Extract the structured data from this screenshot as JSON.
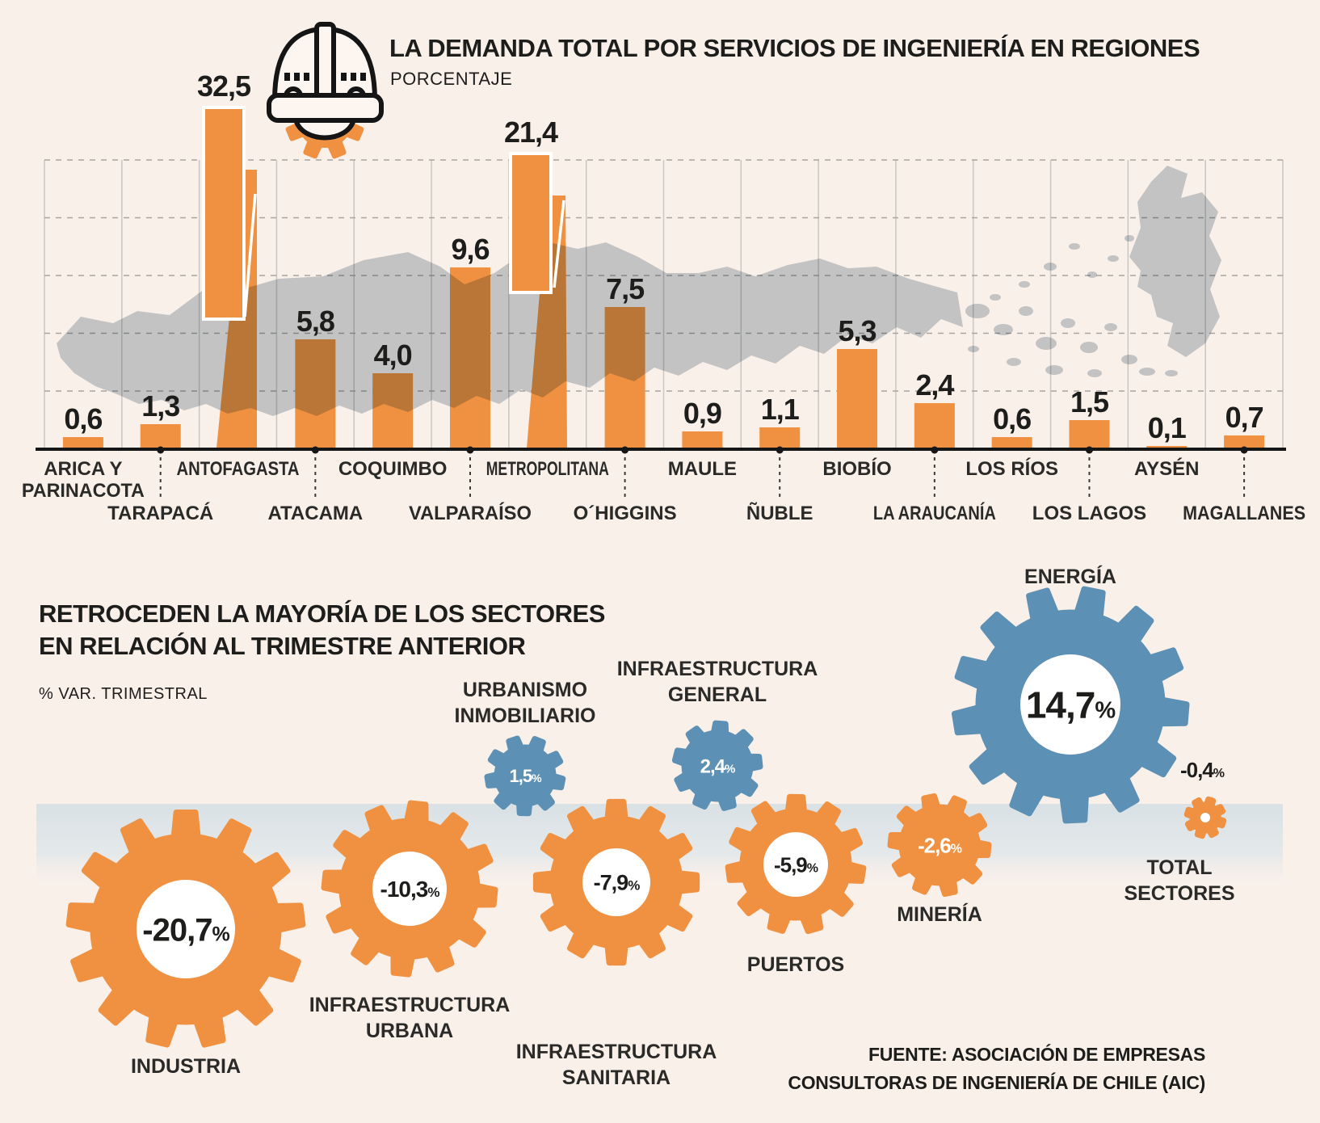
{
  "header": {
    "title": "LA DEMANDA TOTAL POR SERVICIOS DE INGENIERÍA EN REGIONES",
    "subtitle": "PORCENTAJE",
    "icon": "hard-hat-gear-icon"
  },
  "section2": {
    "title_line1": "RETROCEDEN LA MAYORÍA DE LOS SECTORES",
    "title_line2": "EN RELACIÓN AL TRIMESTRE ANTERIOR",
    "subtitle": "% VAR. TRIMESTRAL"
  },
  "source": {
    "line1": "FUENTE: ASOCIACIÓN DE EMPRESAS",
    "line2": "CONSULTORAS DE INGENIERÍA DE CHILE (AIC)"
  },
  "colors": {
    "orange": "#EF9140",
    "blue": "#5C90B4",
    "map_gray": "#C7D0D6",
    "ink": "#1D1D1B",
    "background": "#FAF0EA",
    "band_top": "#D9E1E5",
    "grid_solid": "#C9C6C1",
    "grid_dash": "#A8A49E",
    "white": "#FFFFFF"
  },
  "chart_data": [
    {
      "type": "bar",
      "title": "LA DEMANDA TOTAL POR SERVICIOS DE INGENIERÍA EN REGIONES",
      "unit": "PORCENTAJE",
      "categories": [
        "ARICA Y PARINACOTA",
        "TARAPACÁ",
        "ANTOFAGASTA",
        "ATACAMA",
        "COQUIMBO",
        "VALPARAÍSO",
        "METROPOLITANA",
        "O´HIGGINS",
        "MAULE",
        "ÑUBLE",
        "BIOBÍO",
        "LA ARAUCANÍA",
        "LOS RÍOS",
        "LOS LAGOS",
        "AYSÉN",
        "MAGALLANES"
      ],
      "category_lines": [
        [
          "ARICA Y",
          "PARINACOTA"
        ],
        [
          "TARAPACÁ"
        ],
        [
          "ANTOFAGASTA"
        ],
        [
          "ATACAMA"
        ],
        [
          "COQUIMBO"
        ],
        [
          "VALPARAÍSO"
        ],
        [
          "METROPOLITANA"
        ],
        [
          "O´HIGGINS"
        ],
        [
          "MAULE"
        ],
        [
          "ÑUBLE"
        ],
        [
          "BIOBÍO"
        ],
        [
          "LA ARAUCANÍA"
        ],
        [
          "LOS RÍOS"
        ],
        [
          "LOS LAGOS"
        ],
        [
          "AYSÉN"
        ],
        [
          "MAGALLANES"
        ]
      ],
      "values": [
        0.6,
        1.3,
        32.5,
        5.8,
        4.0,
        9.6,
        21.4,
        7.5,
        0.9,
        1.1,
        5.3,
        2.4,
        0.6,
        1.5,
        0.1,
        0.7
      ],
      "value_labels": [
        "0,6",
        "1,3",
        "32,5",
        "5,8",
        "4,0",
        "9,6",
        "21,4",
        "7,5",
        "0,9",
        "1,1",
        "5,3",
        "2,4",
        "0,6",
        "1,5",
        "0,1",
        "0,7"
      ],
      "ylim": [
        0,
        15
      ],
      "grid": true,
      "note": "bars for ANTOFAGASTA and METROPOLITANA overflow the plot and are drawn as white-outlined callout bars over the map"
    },
    {
      "type": "gear-pictogram",
      "title": "RETROCEDEN LA MAYORÍA DE LOS SECTORES EN RELACIÓN AL TRIMESTRE ANTERIOR",
      "unit": "% VAR. TRIMESTRAL",
      "series": [
        {
          "name": "INDUSTRIA",
          "lines": [
            "INDUSTRIA"
          ],
          "value": -20.7,
          "label": "-20,7"
        },
        {
          "name": "INFRAESTRUCTURA URBANA",
          "lines": [
            "INFRAESTRUCTURA",
            "URBANA"
          ],
          "value": -10.3,
          "label": "-10,3"
        },
        {
          "name": "INFRAESTRUCTURA SANITARIA",
          "lines": [
            "INFRAESTRUCTURA",
            "SANITARIA"
          ],
          "value": -7.9,
          "label": "-7,9"
        },
        {
          "name": "PUERTOS",
          "lines": [
            "PUERTOS"
          ],
          "value": -5.9,
          "label": "-5,9"
        },
        {
          "name": "MINERÍA",
          "lines": [
            "MINERÍA"
          ],
          "value": -2.6,
          "label": "-2,6"
        },
        {
          "name": "URBANISMO INMOBILIARIO",
          "lines": [
            "URBANISMO",
            "INMOBILIARIO"
          ],
          "value": 1.5,
          "label": "1,5"
        },
        {
          "name": "INFRAESTRUCTURA GENERAL",
          "lines": [
            "INFRAESTRUCTURA",
            "GENERAL"
          ],
          "value": 2.4,
          "label": "2,4"
        },
        {
          "name": "ENERGÍA",
          "lines": [
            "ENERGÍA"
          ],
          "value": 14.7,
          "label": "14,7"
        },
        {
          "name": "TOTAL SECTORES",
          "lines": [
            "TOTAL",
            "SECTORES"
          ],
          "value": -0.4,
          "label": "-0,4"
        }
      ],
      "value_suffix": "%",
      "legend": {
        "positive_color": "#5C90B4",
        "negative_color": "#EF9140"
      }
    }
  ]
}
